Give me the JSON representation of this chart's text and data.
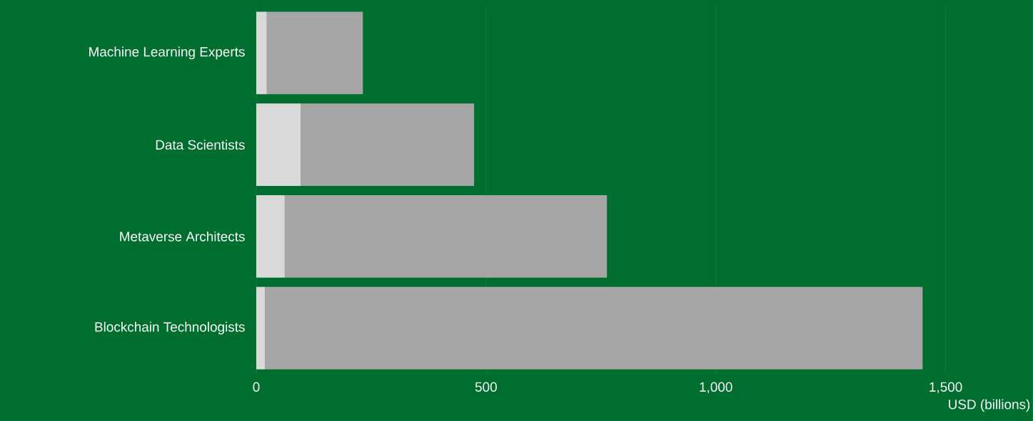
{
  "chart_data": {
    "type": "bar",
    "orientation": "horizontal",
    "stacked": true,
    "categories": [
      "Machine Learning Experts",
      "Data Scientists",
      "Metaverse Architects",
      "Blockchain Technologists"
    ],
    "series": [
      {
        "color": "#d9d9d9",
        "values": [
          23,
          97,
          62,
          19
        ]
      },
      {
        "color": "#a6a6a6",
        "values": [
          209,
          377,
          701,
          1431
        ]
      }
    ],
    "xlabel": "USD (billions)",
    "xlim": [
      0,
      1690
    ],
    "xticks": [
      0,
      500,
      {
        "value": 1000,
        "label": "1,000"
      },
      {
        "value": 1500,
        "label": "1,500"
      }
    ],
    "grid": "x"
  }
}
